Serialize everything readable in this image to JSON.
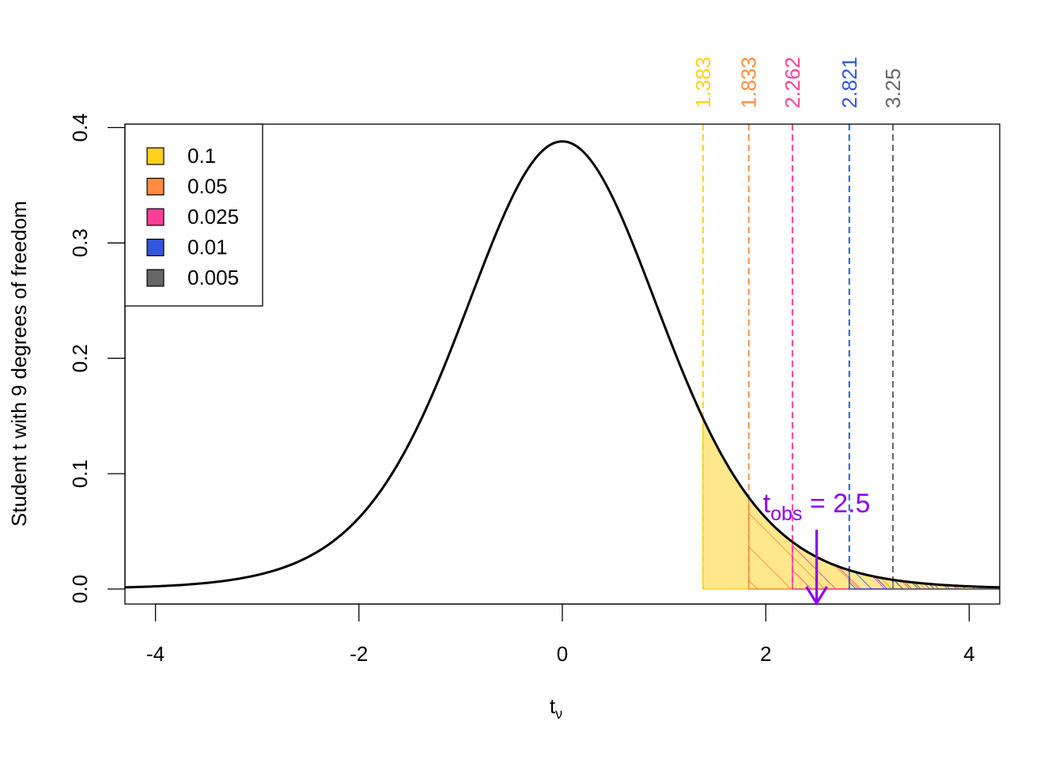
{
  "chart_data": {
    "type": "area",
    "title": "",
    "xlabel": "t",
    "xlabel_sub": "ν",
    "ylabel": "Student t with 9 degrees of freedom",
    "df": 9,
    "xlim": [
      -4.3,
      4.3
    ],
    "ylim": [
      -0.013,
      0.403
    ],
    "xticks": [
      -4,
      -2,
      0,
      2,
      4
    ],
    "yticks": [
      0.0,
      0.1,
      0.2,
      0.3,
      0.4
    ],
    "xtick_labels": [
      "-4",
      "-2",
      "0",
      "2",
      "4"
    ],
    "ytick_labels": [
      "0.0",
      "0.1",
      "0.2",
      "0.3",
      "0.4"
    ],
    "legend": {
      "position": "top-left",
      "entries": [
        {
          "label": "0.1",
          "color": "#FFD11A"
        },
        {
          "label": "0.05",
          "color": "#FF8C40"
        },
        {
          "label": "0.025",
          "color": "#FF4099"
        },
        {
          "label": "0.01",
          "color": "#3355DD"
        },
        {
          "label": "0.005",
          "color": "#666666"
        }
      ]
    },
    "critical_values": [
      {
        "alpha": 0.1,
        "value": 1.383,
        "label": "1.383",
        "color": "#FFD11A"
      },
      {
        "alpha": 0.05,
        "value": 1.833,
        "label": "1.833",
        "color": "#FF8C40"
      },
      {
        "alpha": 0.025,
        "value": 2.262,
        "label": "2.262",
        "color": "#FF4099"
      },
      {
        "alpha": 0.01,
        "value": 2.821,
        "label": "2.821",
        "color": "#3355DD"
      },
      {
        "alpha": 0.005,
        "value": 3.25,
        "label": "3.25",
        "color": "#666666"
      }
    ],
    "observed": {
      "value": 2.5,
      "label_main": "t",
      "label_sub": "obs",
      "label_rest": " = 2.5",
      "color": "#8B00EE"
    }
  }
}
